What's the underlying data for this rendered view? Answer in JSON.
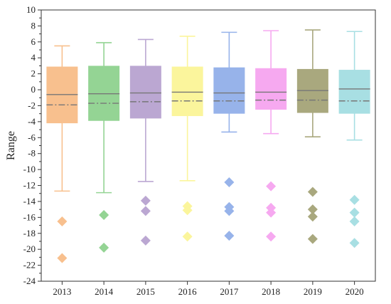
{
  "chart_data": {
    "type": "box",
    "title": "",
    "xlabel": "",
    "ylabel": "Range",
    "ylim": [
      -24,
      10
    ],
    "yticks": [
      10,
      8,
      6,
      4,
      2,
      0,
      -2,
      -4,
      -6,
      -8,
      -10,
      -12,
      -14,
      -16,
      -18,
      -20,
      -22,
      -24
    ],
    "categories": [
      "2013",
      "2014",
      "2015",
      "2016",
      "2017",
      "2018",
      "2019",
      "2020"
    ],
    "colors": [
      "#f8c08e",
      "#94d494",
      "#bba7d2",
      "#fbf59c",
      "#97b3ea",
      "#f6a9f0",
      "#a9a87e",
      "#a8dfe3"
    ],
    "median_color": "#777777",
    "mean_line_color": "#777777",
    "boxes": [
      {
        "category": "2013",
        "whisker_low": -12.7,
        "q1": -4.2,
        "median": -0.6,
        "mean": -1.9,
        "q3": 2.9,
        "whisker_high": 5.5,
        "outliers": [
          -16.5,
          -21.1
        ]
      },
      {
        "category": "2014",
        "whisker_low": -12.9,
        "q1": -3.9,
        "median": -0.5,
        "mean": -1.7,
        "q3": 3.0,
        "whisker_high": 5.9,
        "outliers": [
          -15.7,
          -19.8
        ]
      },
      {
        "category": "2015",
        "whisker_low": -11.5,
        "q1": -3.6,
        "median": -0.4,
        "mean": -1.5,
        "q3": 3.0,
        "whisker_high": 6.3,
        "outliers": [
          -13.9,
          -15.2,
          -18.9
        ]
      },
      {
        "category": "2016",
        "whisker_low": -11.4,
        "q1": -3.3,
        "median": -0.3,
        "mean": -1.4,
        "q3": 2.9,
        "whisker_high": 6.7,
        "outliers": [
          -14.6,
          -15.1,
          -18.4
        ]
      },
      {
        "category": "2017",
        "whisker_low": -5.3,
        "q1": -3.0,
        "median": -0.4,
        "mean": -1.4,
        "q3": 2.8,
        "whisker_high": 7.2,
        "outliers": [
          -11.6,
          -14.7,
          -15.2,
          -18.3
        ]
      },
      {
        "category": "2018",
        "whisker_low": -5.5,
        "q1": -2.5,
        "median": -0.3,
        "mean": -1.3,
        "q3": 2.7,
        "whisker_high": 7.4,
        "outliers": [
          -12.1,
          -14.8,
          -15.4,
          -18.4
        ]
      },
      {
        "category": "2019",
        "whisker_low": -5.9,
        "q1": -2.9,
        "median": -0.1,
        "mean": -1.3,
        "q3": 2.6,
        "whisker_high": 7.5,
        "outliers": [
          -12.8,
          -15.0,
          -15.9,
          -18.7
        ]
      },
      {
        "category": "2020",
        "whisker_low": -6.3,
        "q1": -3.0,
        "median": 0.1,
        "mean": -1.4,
        "q3": 2.5,
        "whisker_high": 7.3,
        "outliers": [
          -13.8,
          -15.4,
          -16.5,
          -19.2
        ]
      }
    ],
    "grid": false,
    "legend": "none"
  }
}
